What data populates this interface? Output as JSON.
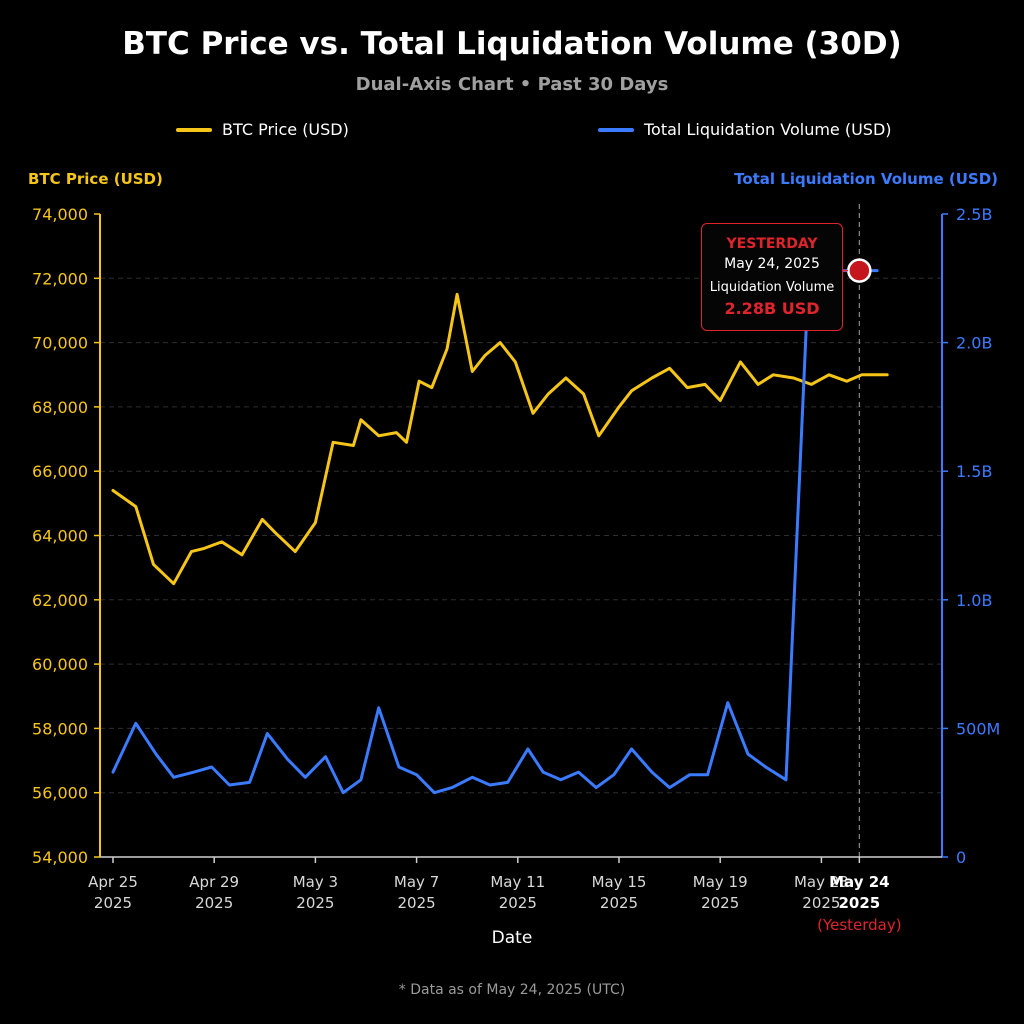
{
  "title": "BTC Price vs. Total Liquidation Volume (30D)",
  "subtitle": "Dual-Axis Chart • Past 30 Days",
  "footnote": "* Data as of May 24, 2025 (UTC)",
  "colors": {
    "btc": "#f5c518",
    "liquidation": "#3b7bff",
    "highlight": "#e0242c",
    "background": "#000000"
  },
  "callout": {
    "heading": "YESTERDAY",
    "date": "May 24, 2025",
    "label": "Liquidation Volume",
    "value": "2.28B USD"
  },
  "chart_data": {
    "type": "line",
    "dual_axis": true,
    "xlabel": "Date",
    "ylabel_left": "BTC Price (USD)",
    "ylabel_right": "Total Liquidation Volume (USD)",
    "ylim_left": [
      54000,
      74000
    ],
    "ylim_right": [
      0,
      2500000000
    ],
    "yticks_left": [
      "74,000",
      "72,000",
      "70,000",
      "68,000",
      "66,000",
      "64,000",
      "62,000",
      "60,000",
      "58,000",
      "56,000",
      "54,000"
    ],
    "yticks_right": [
      "2.5B",
      "2.0B",
      "1.5B",
      "1.0B",
      "500M",
      "0"
    ],
    "xticks": [
      {
        "line1": "Apr 25",
        "line2": "2025",
        "day": 0
      },
      {
        "line1": "Apr 29",
        "line2": "2025",
        "day": 4
      },
      {
        "line1": "May 3",
        "line2": "2025",
        "day": 8
      },
      {
        "line1": "May 7",
        "line2": "2025",
        "day": 12
      },
      {
        "line1": "May 11",
        "line2": "2025",
        "day": 16
      },
      {
        "line1": "May 15",
        "line2": "2025",
        "day": 20
      },
      {
        "line1": "May 19",
        "line2": "2025",
        "day": 24
      },
      {
        "line1": "May 23",
        "line2": "2025",
        "day": 28
      },
      {
        "line1": "May 24",
        "line2": "2025",
        "note": "(Yesterday)",
        "day": 29.5,
        "highlight": true
      }
    ],
    "grid": true,
    "legend_position": "top",
    "series": [
      {
        "name": "BTC Price (USD)",
        "axis": "left",
        "x": [
          0,
          0.9,
          1.6,
          2.4,
          3.1,
          3.6,
          4.3,
          5.1,
          5.9,
          6.4,
          7.2,
          8.0,
          8.7,
          9.5,
          9.8,
          10.5,
          11.2,
          11.6,
          12.1,
          12.6,
          13.2,
          13.6,
          14.2,
          14.7,
          15.3,
          15.9,
          16.6,
          17.2,
          17.9,
          18.6,
          19.2,
          20.0,
          20.5,
          21.3,
          22.0,
          22.7,
          23.4,
          24.0,
          24.8,
          25.5,
          26.1,
          26.9,
          27.6,
          28.3,
          29.0,
          29.6,
          30.2,
          30.6
        ],
        "values": [
          65400,
          64900,
          63100,
          62500,
          63500,
          63600,
          63800,
          63400,
          64500,
          64100,
          63500,
          64400,
          66900,
          66800,
          67600,
          67100,
          67200,
          66900,
          68800,
          68600,
          69800,
          71500,
          69100,
          69600,
          70000,
          69400,
          67800,
          68400,
          68900,
          68400,
          67100,
          68000,
          68500,
          68900,
          69200,
          68600,
          68700,
          68200,
          69400,
          68700,
          69000,
          68900,
          68700,
          69000,
          68800,
          69000,
          69000,
          69000
        ]
      },
      {
        "name": "Total Liquidation Volume (USD)",
        "axis": "right",
        "x": [
          0,
          0.9,
          1.7,
          2.4,
          3.2,
          3.9,
          4.6,
          5.4,
          6.1,
          6.9,
          7.6,
          8.4,
          9.1,
          9.8,
          10.5,
          11.3,
          12.0,
          12.7,
          13.4,
          14.2,
          14.9,
          15.6,
          16.4,
          17.0,
          17.7,
          18.4,
          19.1,
          19.8,
          20.5,
          21.3,
          22.0,
          22.8,
          23.5,
          24.3,
          25.1,
          25.8,
          26.6,
          27.5,
          28.3,
          29.0,
          29.6,
          30.2
        ],
        "values": [
          330000000,
          520000000,
          400000000,
          310000000,
          330000000,
          350000000,
          280000000,
          290000000,
          480000000,
          380000000,
          310000000,
          390000000,
          250000000,
          300000000,
          580000000,
          350000000,
          320000000,
          250000000,
          270000000,
          310000000,
          280000000,
          290000000,
          420000000,
          330000000,
          300000000,
          330000000,
          270000000,
          320000000,
          420000000,
          330000000,
          270000000,
          320000000,
          320000000,
          600000000,
          400000000,
          350000000,
          300000000,
          2280000000,
          2280000000,
          2280000000,
          2280000000,
          2280000000
        ]
      }
    ]
  }
}
